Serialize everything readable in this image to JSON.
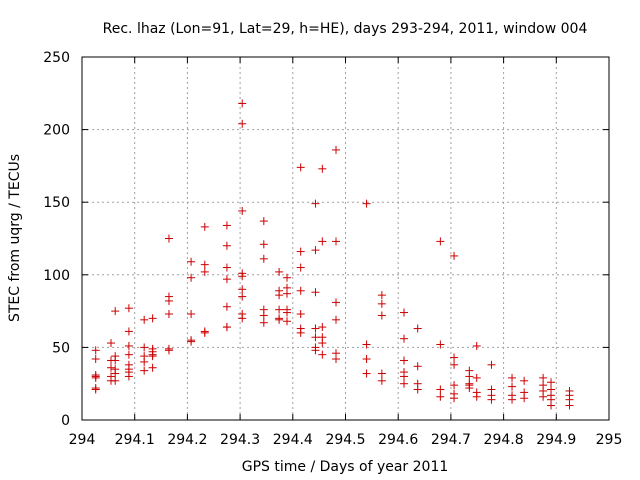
{
  "chart_data": {
    "type": "scatter",
    "title": "Rec. lhaz (Lon=91, Lat=29, h=HE), days 293-294, 2011, window 004",
    "xlabel": "GPS time / Days of year 2011",
    "ylabel": "STEC from uqrg / TECUs",
    "xlim": [
      294,
      295
    ],
    "ylim": [
      0,
      250
    ],
    "grid": true,
    "marker": "+",
    "marker_color": "#cc0000",
    "x_ticks": [
      294,
      294.1,
      294.2,
      294.3,
      294.4,
      294.5,
      294.6,
      294.7,
      294.8,
      294.9,
      295
    ],
    "x_tick_labels": [
      "294",
      "294.1",
      "294.2",
      "294.3",
      "294.4",
      "294.5",
      "294.6",
      "294.7",
      "294.8",
      "294.9",
      "295"
    ],
    "y_ticks": [
      0,
      50,
      100,
      150,
      200,
      250
    ],
    "y_tick_labels": [
      "0",
      "50",
      "100",
      "150",
      "200",
      "250"
    ],
    "series": [
      {
        "name": "STEC",
        "x": [
          294.026,
          294.026,
          294.026,
          294.026,
          294.026,
          294.026,
          294.026,
          294.055,
          294.055,
          294.055,
          294.055,
          294.055,
          294.063,
          294.063,
          294.063,
          294.063,
          294.063,
          294.063,
          294.089,
          294.089,
          294.089,
          294.089,
          294.089,
          294.089,
          294.089,
          294.089,
          294.118,
          294.118,
          294.118,
          294.118,
          294.118,
          294.134,
          294.134,
          294.134,
          294.134,
          294.134,
          294.134,
          294.165,
          294.165,
          294.165,
          294.165,
          294.165,
          294.165,
          294.207,
          294.207,
          294.207,
          294.207,
          294.207,
          294.233,
          294.233,
          294.233,
          294.233,
          294.233,
          294.275,
          294.275,
          294.275,
          294.275,
          294.275,
          294.275,
          294.275,
          294.304,
          294.304,
          294.304,
          294.304,
          294.304,
          294.304,
          294.304,
          294.304,
          294.304,
          294.345,
          294.345,
          294.345,
          294.345,
          294.345,
          294.345,
          294.374,
          294.374,
          294.374,
          294.374,
          294.374,
          294.374,
          294.389,
          294.389,
          294.389,
          294.389,
          294.389,
          294.389,
          294.415,
          294.415,
          294.415,
          294.415,
          294.415,
          294.415,
          294.415,
          294.443,
          294.443,
          294.443,
          294.443,
          294.443,
          294.443,
          294.443,
          294.456,
          294.456,
          294.456,
          294.456,
          294.456,
          294.456,
          294.482,
          294.482,
          294.482,
          294.482,
          294.482,
          294.482,
          294.54,
          294.54,
          294.54,
          294.54,
          294.569,
          294.569,
          294.569,
          294.569,
          294.569,
          294.611,
          294.611,
          294.611,
          294.611,
          294.611,
          294.611,
          294.637,
          294.637,
          294.637,
          294.637,
          294.68,
          294.68,
          294.68,
          294.68,
          294.706,
          294.706,
          294.706,
          294.706,
          294.706,
          294.706,
          294.735,
          294.735,
          294.735,
          294.735,
          294.735,
          294.749,
          294.749,
          294.749,
          294.749,
          294.777,
          294.777,
          294.777,
          294.777,
          294.816,
          294.816,
          294.816,
          294.816,
          294.839,
          294.839,
          294.839,
          294.875,
          294.875,
          294.875,
          294.875,
          294.89,
          294.89,
          294.89,
          294.89,
          294.89,
          294.925,
          294.925,
          294.925,
          294.925
        ],
        "y": [
          48,
          42,
          31,
          30,
          29,
          22,
          21,
          53,
          41,
          36,
          30,
          27,
          75,
          44,
          41,
          35,
          32,
          27,
          77,
          61,
          51,
          45,
          38,
          35,
          33,
          30,
          69,
          50,
          44,
          40,
          34,
          70,
          49,
          47,
          45,
          44,
          36,
          125,
          85,
          82,
          73,
          49,
          48,
          109,
          98,
          73,
          55,
          54,
          133,
          107,
          102,
          61,
          60,
          134,
          120,
          105,
          97,
          78,
          64,
          64,
          218,
          204,
          144,
          101,
          99,
          90,
          85,
          73,
          70,
          137,
          121,
          111,
          76,
          72,
          67,
          102,
          89,
          86,
          76,
          70,
          69,
          98,
          91,
          87,
          76,
          74,
          68,
          174,
          116,
          105,
          89,
          73,
          63,
          60,
          149,
          117,
          88,
          63,
          57,
          50,
          48,
          173,
          123,
          64,
          57,
          53,
          45,
          186,
          123,
          81,
          69,
          46,
          42,
          149,
          52,
          42,
          32,
          86,
          80,
          72,
          32,
          27,
          74,
          56,
          41,
          33,
          30,
          25,
          63,
          37,
          25,
          21,
          123,
          52,
          21,
          16,
          113,
          43,
          38,
          24,
          18,
          15,
          34,
          30,
          25,
          24,
          22,
          51,
          29,
          19,
          16,
          38,
          21,
          17,
          14,
          29,
          23,
          17,
          14,
          27,
          19,
          15,
          29,
          24,
          20,
          16,
          26,
          21,
          17,
          14,
          10,
          20,
          17,
          14,
          10
        ]
      }
    ]
  }
}
